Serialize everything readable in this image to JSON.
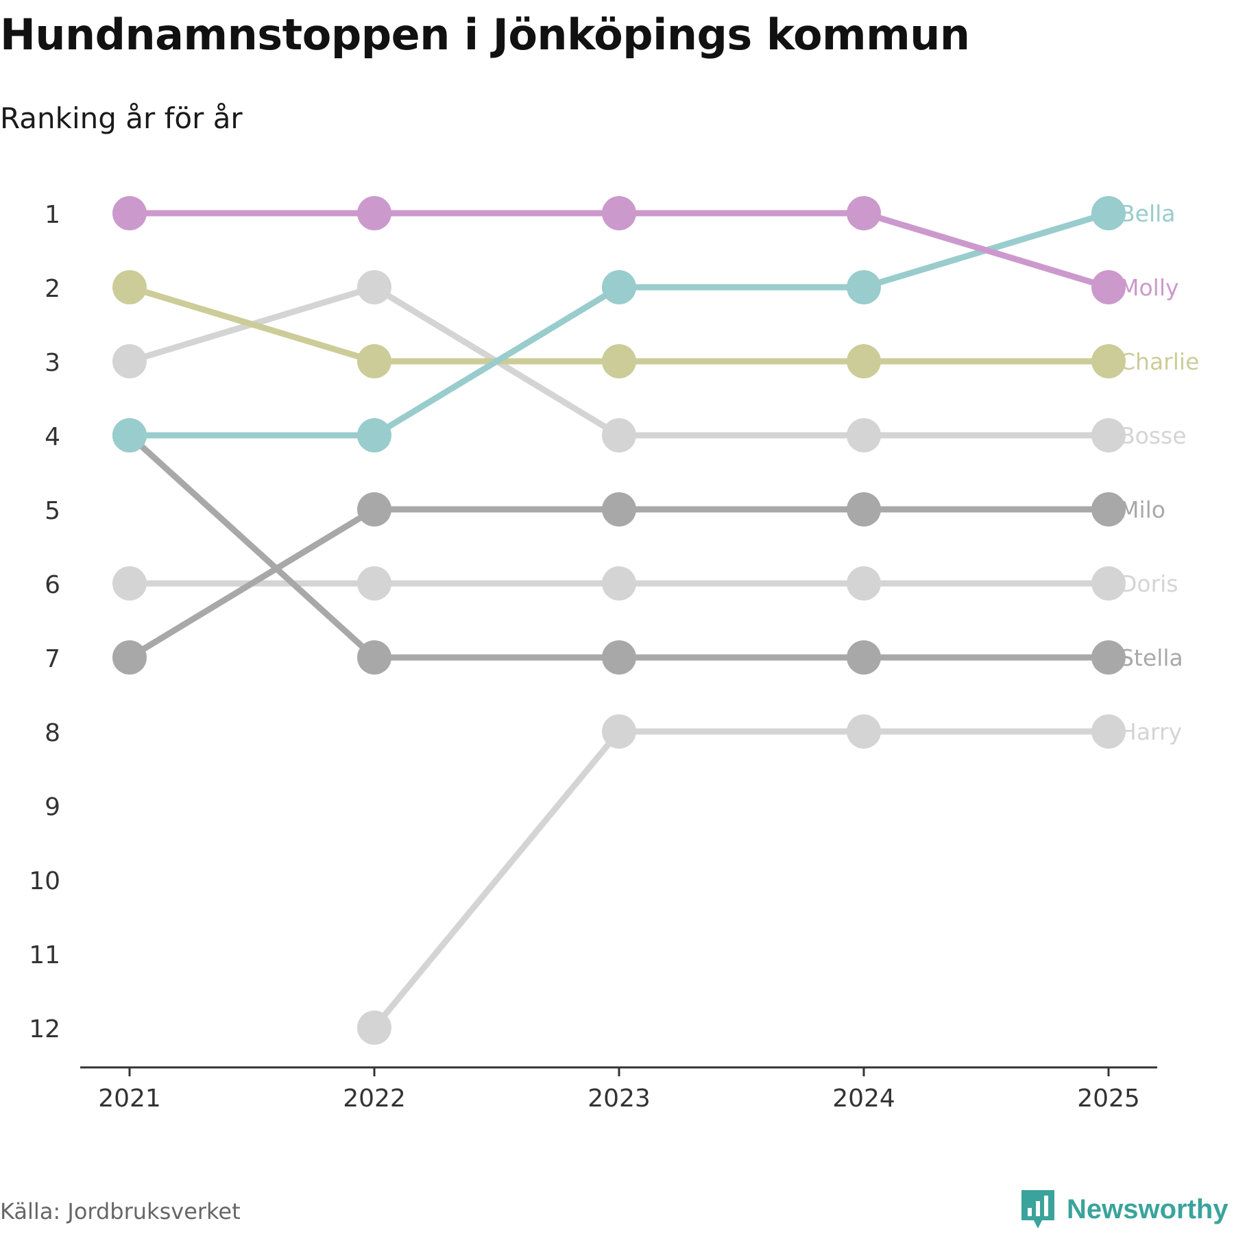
{
  "header": {
    "title": "Hundnamnstoppen i Jönköpings kommun",
    "subtitle": "Ranking år för år"
  },
  "footer": {
    "source": "Källa: Jordbruksverket",
    "brand": "Newsworthy",
    "brand_icon": "newsworthy-logo-icon",
    "brand_color": "#3aa39c"
  },
  "chart_data": {
    "type": "line",
    "subtype": "bump",
    "title": "Hundnamnstoppen i Jönköpings kommun",
    "subtitle": "Ranking år för år",
    "x": [
      "2021",
      "2022",
      "2023",
      "2024",
      "2025"
    ],
    "y_ticks": [
      1,
      2,
      3,
      4,
      5,
      6,
      7,
      8,
      9,
      10,
      11,
      12
    ],
    "ylim": [
      1,
      12
    ],
    "y_reversed": true,
    "xlabel": "",
    "ylabel": "",
    "grid": false,
    "series": [
      {
        "name": "Harry",
        "color": "#d4d4d4",
        "values": [
          null,
          12,
          8,
          8,
          8
        ]
      },
      {
        "name": "Doris",
        "color": "#d4d4d4",
        "values": [
          6,
          6,
          6,
          6,
          6
        ]
      },
      {
        "name": "Bosse",
        "color": "#d4d4d4",
        "values": [
          3,
          2,
          4,
          4,
          4
        ]
      },
      {
        "name": "Stella",
        "color": "#a8a8a8",
        "values": [
          4,
          7,
          7,
          7,
          7
        ]
      },
      {
        "name": "Milo",
        "color": "#a8a8a8",
        "values": [
          7,
          5,
          5,
          5,
          5
        ]
      },
      {
        "name": "Charlie",
        "color": "#cccc99",
        "values": [
          2,
          3,
          3,
          3,
          3
        ]
      },
      {
        "name": "Bella",
        "color": "#99cccc",
        "values": [
          4,
          4,
          2,
          2,
          1
        ]
      },
      {
        "name": "Molly",
        "color": "#cc99cc",
        "values": [
          1,
          1,
          1,
          1,
          2
        ]
      }
    ]
  }
}
